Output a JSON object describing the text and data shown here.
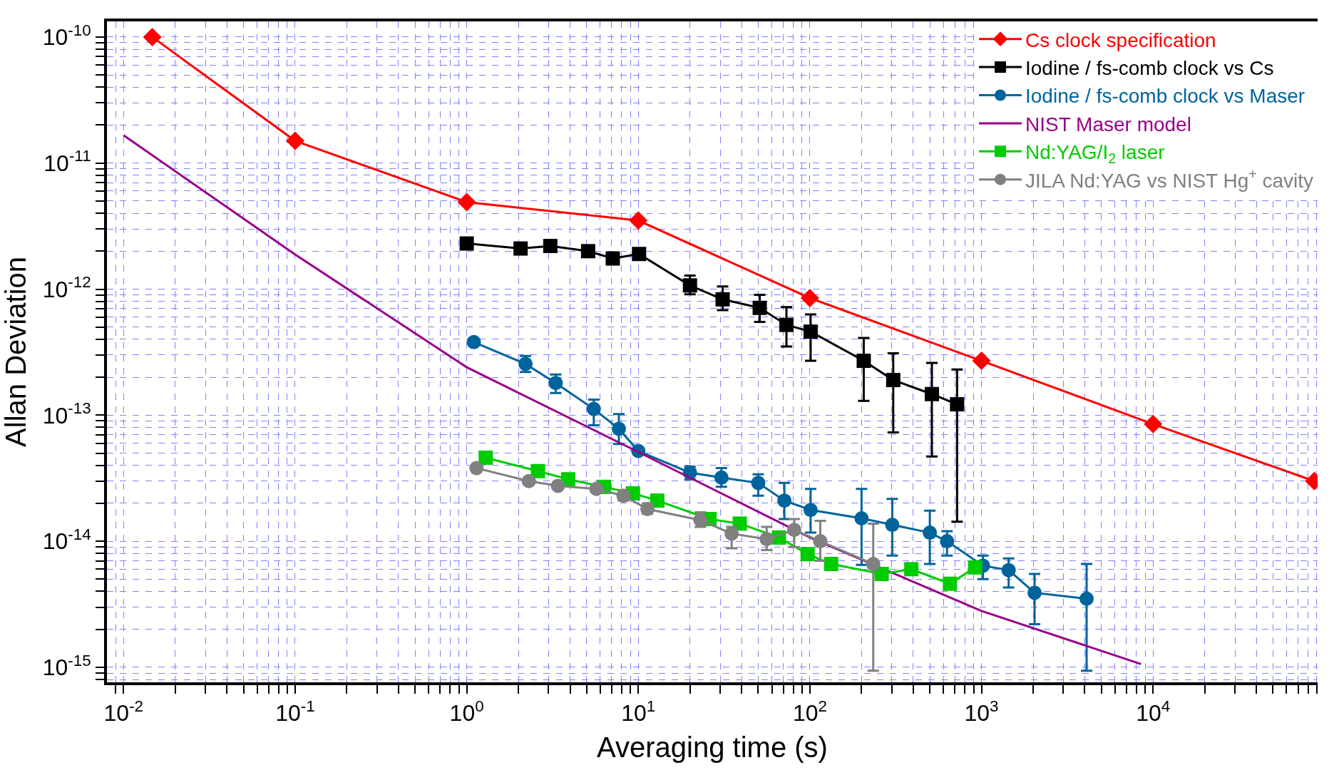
{
  "chart_data": {
    "type": "line",
    "xlabel": "Averaging time (s)",
    "ylabel": "Allan Deviation",
    "log": "xy",
    "grid": true,
    "legend": "top right",
    "xlim": [
      0.008,
      91000
    ],
    "ylim": [
      7.6e-16,
      1.33e-10
    ],
    "xticks": [
      {
        "value": 0.01,
        "label": "10$^{-2}$"
      },
      {
        "value": 0.1,
        "label": "10$^{-1}$"
      },
      {
        "value": 1,
        "label": "10$^{0}$"
      },
      {
        "value": 10,
        "label": "10$^{1}$"
      },
      {
        "value": 100,
        "label": "10$^{2}$"
      },
      {
        "value": 1000,
        "label": "10$^{3}$"
      },
      {
        "value": 10000,
        "label": "10$^{4}$"
      },
      {
        "value": 0.009,
        "label": null
      },
      {
        "value": 0.02,
        "label": null
      },
      {
        "value": 0.03,
        "label": null
      },
      {
        "value": 0.04,
        "label": null
      },
      {
        "value": 0.05,
        "label": null
      },
      {
        "value": 0.06,
        "label": null
      },
      {
        "value": 0.07,
        "label": null
      },
      {
        "value": 0.08,
        "label": null
      },
      {
        "value": 0.09,
        "label": null
      },
      {
        "value": 0.2,
        "label": null
      },
      {
        "value": 0.3,
        "label": null
      },
      {
        "value": 0.4,
        "label": null
      },
      {
        "value": 0.5,
        "label": null
      },
      {
        "value": 0.6,
        "label": null
      },
      {
        "value": 0.7,
        "label": null
      },
      {
        "value": 0.8,
        "label": null
      },
      {
        "value": 0.9,
        "label": null
      },
      {
        "value": 2,
        "label": null
      },
      {
        "value": 3,
        "label": null
      },
      {
        "value": 4,
        "label": null
      },
      {
        "value": 5,
        "label": null
      },
      {
        "value": 6,
        "label": null
      },
      {
        "value": 7,
        "label": null
      },
      {
        "value": 8,
        "label": null
      },
      {
        "value": 9,
        "label": null
      },
      {
        "value": 20,
        "label": null
      },
      {
        "value": 30,
        "label": null
      },
      {
        "value": 40,
        "label": null
      },
      {
        "value": 50,
        "label": null
      },
      {
        "value": 60,
        "label": null
      },
      {
        "value": 70,
        "label": null
      },
      {
        "value": 80,
        "label": null
      },
      {
        "value": 90,
        "label": null
      },
      {
        "value": 200,
        "label": null
      },
      {
        "value": 300,
        "label": null
      },
      {
        "value": 400,
        "label": null
      },
      {
        "value": 500,
        "label": null
      },
      {
        "value": 600,
        "label": null
      },
      {
        "value": 700,
        "label": null
      },
      {
        "value": 800,
        "label": null
      },
      {
        "value": 900,
        "label": null
      },
      {
        "value": 2000,
        "label": null
      },
      {
        "value": 3000,
        "label": null
      },
      {
        "value": 4000,
        "label": null
      },
      {
        "value": 5000,
        "label": null
      },
      {
        "value": 6000,
        "label": null
      },
      {
        "value": 7000,
        "label": null
      },
      {
        "value": 8000,
        "label": null
      },
      {
        "value": 9000,
        "label": null
      },
      {
        "value": 20000,
        "label": null
      },
      {
        "value": 30000,
        "label": null
      },
      {
        "value": 40000,
        "label": null
      },
      {
        "value": 50000,
        "label": null
      },
      {
        "value": 60000,
        "label": null
      },
      {
        "value": 70000,
        "label": null
      },
      {
        "value": 80000,
        "label": null
      },
      {
        "value": 90000,
        "label": null
      }
    ],
    "yticks": [
      {
        "value": 1e-15,
        "label": "10$^{-15}$"
      },
      {
        "value": 1e-14,
        "label": "10$^{-14}$"
      },
      {
        "value": 1e-13,
        "label": "10$^{-13}$"
      },
      {
        "value": 1e-12,
        "label": "10$^{-12}$"
      },
      {
        "value": 1e-11,
        "label": "10$^{-11}$"
      },
      {
        "value": 1e-10,
        "label": "10$^{-10}$"
      },
      {
        "value": 8e-16,
        "label": null
      },
      {
        "value": 9e-16,
        "label": null
      },
      {
        "value": 2e-15,
        "label": null
      },
      {
        "value": 3e-15,
        "label": null
      },
      {
        "value": 4e-15,
        "label": null
      },
      {
        "value": 5e-15,
        "label": null
      },
      {
        "value": 6e-15,
        "label": null
      },
      {
        "value": 7e-15,
        "label": null
      },
      {
        "value": 8e-15,
        "label": null
      },
      {
        "value": 9e-15,
        "label": null
      },
      {
        "value": 2e-14,
        "label": null
      },
      {
        "value": 3e-14,
        "label": null
      },
      {
        "value": 4e-14,
        "label": null
      },
      {
        "value": 5e-14,
        "label": null
      },
      {
        "value": 6e-14,
        "label": null
      },
      {
        "value": 7e-14,
        "label": null
      },
      {
        "value": 8e-14,
        "label": null
      },
      {
        "value": 9e-14,
        "label": null
      },
      {
        "value": 2e-13,
        "label": null
      },
      {
        "value": 3e-13,
        "label": null
      },
      {
        "value": 4e-13,
        "label": null
      },
      {
        "value": 5e-13,
        "label": null
      },
      {
        "value": 6e-13,
        "label": null
      },
      {
        "value": 7e-13,
        "label": null
      },
      {
        "value": 8e-13,
        "label": null
      },
      {
        "value": 9e-13,
        "label": null
      },
      {
        "value": 2e-12,
        "label": null
      },
      {
        "value": 3e-12,
        "label": null
      },
      {
        "value": 4e-12,
        "label": null
      },
      {
        "value": 5e-12,
        "label": null
      },
      {
        "value": 6e-12,
        "label": null
      },
      {
        "value": 7e-12,
        "label": null
      },
      {
        "value": 8e-12,
        "label": null
      },
      {
        "value": 9e-12,
        "label": null
      },
      {
        "value": 2e-11,
        "label": null
      },
      {
        "value": 3e-11,
        "label": null
      },
      {
        "value": 4e-11,
        "label": null
      },
      {
        "value": 5e-11,
        "label": null
      },
      {
        "value": 6e-11,
        "label": null
      },
      {
        "value": 7e-11,
        "label": null
      },
      {
        "value": 8e-11,
        "label": null
      },
      {
        "value": 9e-11,
        "label": null
      }
    ],
    "series": [
      {
        "name": "Cs clock specification",
        "color": "#ff0000",
        "marker": "diamond",
        "x": [
          0.0147,
          0.1,
          1,
          10,
          100,
          1000,
          10000,
          87000
        ],
        "values": [
          1e-10,
          1.5e-11,
          4.9e-12,
          3.5e-12,
          8.5e-13,
          2.7e-13,
          8.5e-14,
          3e-14
        ]
      },
      {
        "name": "Iodine / fs-comb clock vs Cs",
        "color": "#000000",
        "marker": "square",
        "x": [
          1,
          2.06,
          3.07,
          5.1,
          7.1,
          10.1,
          20,
          31,
          51,
          73,
          101,
          206,
          306,
          514,
          721
        ],
        "values": [
          2.3e-12,
          2.1e-12,
          2.2e-12,
          2e-12,
          1.75e-12,
          1.9e-12,
          1.07e-12,
          8.3e-13,
          7.1e-13,
          5.2e-13,
          4.6e-13,
          2.7e-13,
          1.9e-13,
          1.47e-13,
          1.22e-13
        ],
        "errors": [
          null,
          null,
          null,
          null,
          null,
          null,
          [
            9.1e-13,
            1.28e-12
          ],
          [
            6.8e-13,
            1.05e-12
          ],
          [
            5.5e-13,
            9e-13
          ],
          [
            3.5e-13,
            7.2e-13
          ],
          [
            2.7e-13,
            6.3e-13
          ],
          [
            1.3e-13,
            4.1e-13
          ],
          [
            7.3e-14,
            3.1e-13
          ],
          [
            4.7e-14,
            2.6e-13
          ],
          [
            1.43e-14,
            2.3e-13
          ]
        ]
      },
      {
        "name": "Iodine / fs-comb clock vs Maser",
        "color": "#00649c",
        "marker": "circle",
        "x": [
          1.1,
          2.2,
          3.3,
          5.5,
          7.7,
          10,
          20,
          30.5,
          50,
          71,
          101,
          200,
          302,
          500,
          630,
          1020,
          1440,
          2040,
          4100
        ],
        "values": [
          3.8e-13,
          2.55e-13,
          1.8e-13,
          1.12e-13,
          7.8e-14,
          5.2e-14,
          3.5e-14,
          3.2e-14,
          2.9e-14,
          2.1e-14,
          1.77e-14,
          1.52e-14,
          1.35e-14,
          1.17e-14,
          1e-14,
          6.4e-15,
          5.9e-15,
          3.9e-15,
          3.5e-15
        ],
        "errors": [
          null,
          [
            2.2e-13,
            2.95e-13
          ],
          [
            1.5e-13,
            2.1e-13
          ],
          [
            8.3e-14,
            1.33e-13
          ],
          [
            5.9e-14,
            1.02e-13
          ],
          [
            4.9e-14,
            5.5e-14
          ],
          [
            3.1e-14,
            3.9e-14
          ],
          [
            2.7e-14,
            3.8e-14
          ],
          [
            2.3e-14,
            3.4e-14
          ],
          [
            1.5e-14,
            2.9e-14
          ],
          [
            1.17e-14,
            2.6e-14
          ],
          [
            6.5e-15,
            2.6e-14
          ],
          [
            7.7e-15,
            2.17e-14
          ],
          [
            6.6e-15,
            1.75e-14
          ],
          [
            7.7e-15,
            1.2e-14
          ],
          [
            5e-15,
            7.7e-15
          ],
          [
            4.3e-15,
            7.3e-15
          ],
          [
            2.2e-15,
            5.5e-15
          ],
          [
            9.4e-16,
            6.6e-15
          ]
        ]
      },
      {
        "name": "NIST Maser model",
        "color": "#990088",
        "marker": "none",
        "x": [
          0.01,
          0.1,
          1,
          10,
          100,
          1000,
          8500
        ],
        "values": [
          1.66e-11,
          1.88e-12,
          2.4e-13,
          5.1e-14,
          1.07e-14,
          2.8e-15,
          1.06e-15
        ]
      },
      {
        "name": "Nd:YAG/I$_{2}$ laser",
        "color": "#00cc00",
        "marker": "square",
        "x": [
          1.29,
          2.6,
          3.9,
          6.3,
          9.3,
          12.9,
          26,
          39,
          66,
          97,
          133,
          262,
          390,
          655,
          918
        ],
        "values": [
          4.6e-14,
          3.6e-14,
          3.1e-14,
          2.7e-14,
          2.4e-14,
          2.1e-14,
          1.5e-14,
          1.38e-14,
          1.07e-14,
          7.9e-15,
          6.6e-15,
          5.5e-15,
          6e-15,
          4.6e-15,
          6.2e-15
        ]
      },
      {
        "name": "JILA Nd:YAG vs NIST Hg$^{+}$ cavity",
        "color": "#808080",
        "marker": "circle",
        "x": [
          1.14,
          2.3,
          3.4,
          5.7,
          8.2,
          11.3,
          23,
          35,
          56,
          81,
          115,
          234
        ],
        "values": [
          3.8e-14,
          3e-14,
          2.75e-14,
          2.6e-14,
          2.3e-14,
          1.8e-14,
          1.47e-14,
          1.15e-14,
          1.04e-14,
          1.23e-14,
          1e-14,
          6.6e-15
        ],
        "errors": [
          null,
          null,
          null,
          null,
          [
            2.1e-14,
            2.5e-14
          ],
          [
            1.65e-14,
            2e-14
          ],
          [
            1.3e-14,
            1.7e-14
          ],
          [
            8.8e-15,
            1.3e-14
          ],
          [
            8.5e-15,
            1.3e-14
          ],
          [
            9e-15,
            1.5e-14
          ],
          [
            7e-15,
            1.45e-14
          ],
          [
            9.4e-16,
            1.38e-14
          ]
        ]
      }
    ]
  }
}
